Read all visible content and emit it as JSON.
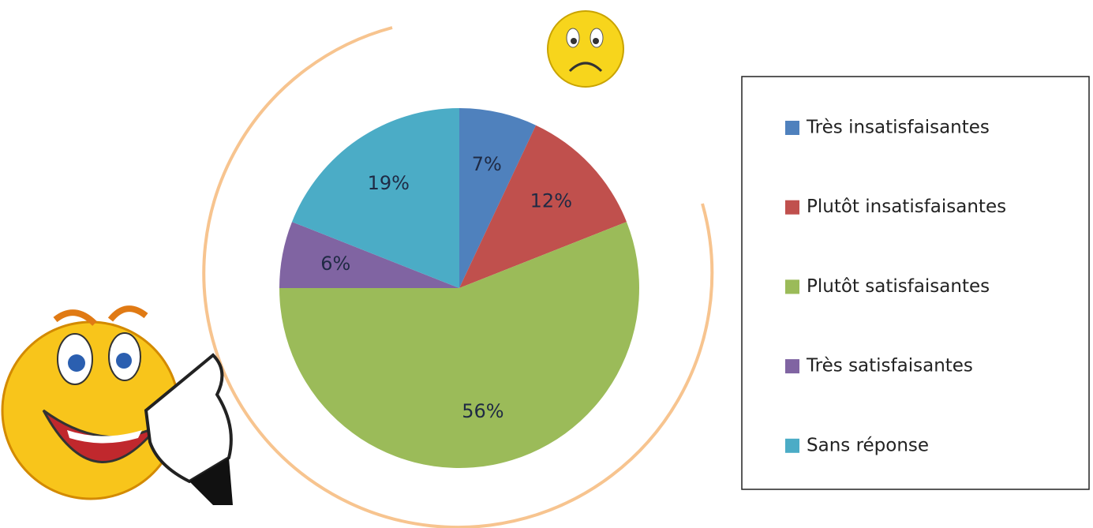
{
  "chart_data": {
    "type": "pie",
    "categories": [
      "Très insatisfaisantes",
      "Plutôt insatisfaisantes",
      "Plutôt satisfaisantes",
      "Très satisfaisantes",
      "Sans réponse"
    ],
    "values": [
      7,
      12,
      56,
      6,
      19
    ],
    "value_labels": [
      "7%",
      "12%",
      "56%",
      "6%",
      "19%"
    ],
    "colors": [
      "#4f81bd",
      "#c0504d",
      "#9bbb59",
      "#8064a2",
      "#4bacc6"
    ],
    "legend": "right"
  }
}
